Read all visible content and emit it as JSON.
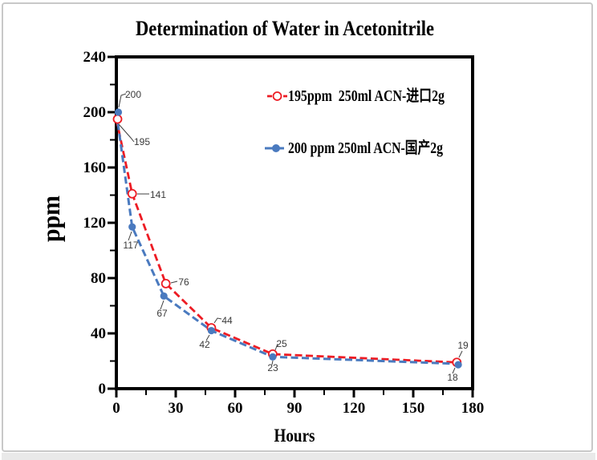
{
  "window": {
    "background": "#ffffff",
    "border_color": "#c8c8c8"
  },
  "chart_data": {
    "type": "line",
    "title": "Determination of Water in Acetonitrile",
    "xlabel": "Hours",
    "ylabel": "ppm",
    "xlim": [
      0,
      180
    ],
    "ylim": [
      0,
      240
    ],
    "x_ticks": [
      0,
      30,
      60,
      90,
      120,
      150,
      180
    ],
    "y_ticks": [
      0,
      40,
      80,
      120,
      160,
      200,
      240
    ],
    "x_minor_step": 15,
    "y_minor_step": 20,
    "grid": false,
    "legend_position": "upper-right-inside",
    "point_labels_visible": true,
    "series": [
      {
        "name": "195ppm  250ml ACN-进口2g",
        "color": "#ED1C24",
        "line_style": "dashed",
        "marker": "open-circle",
        "points": [
          [
            0,
            195
          ],
          [
            8,
            141
          ],
          [
            25,
            76
          ],
          [
            48,
            44
          ],
          [
            79,
            25
          ],
          [
            172,
            19
          ]
        ]
      },
      {
        "name": "200 ppm 250ml ACN-国产2g",
        "color": "#4A7ABF",
        "line_style": "dashed",
        "marker": "filled-circle",
        "points": [
          [
            0,
            200
          ],
          [
            8,
            117
          ],
          [
            24,
            67
          ],
          [
            48,
            42
          ],
          [
            79,
            23
          ],
          [
            172,
            18
          ]
        ]
      }
    ]
  }
}
